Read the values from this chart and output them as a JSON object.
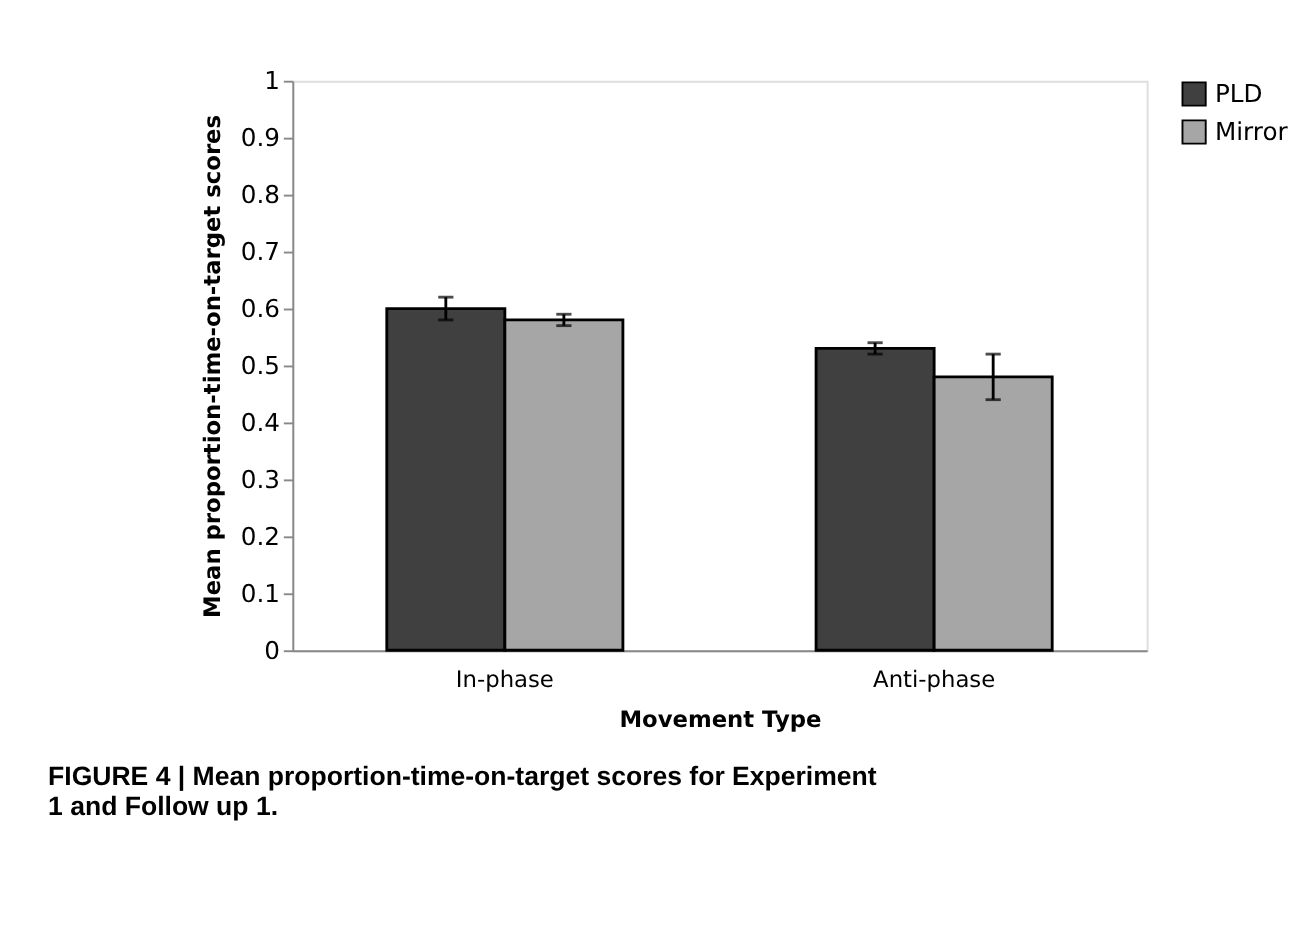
{
  "chart_data": {
    "type": "bar",
    "xlabel": "Movement Type",
    "ylabel": "Mean proportion-time-on-target scores",
    "categories": [
      "In-phase",
      "Anti-phase"
    ],
    "series": [
      {
        "name": "PLD",
        "color": "#404040",
        "values": [
          0.6,
          0.53
        ],
        "errors": [
          0.02,
          0.01
        ]
      },
      {
        "name": "Mirror",
        "color": "#a6a6a6",
        "values": [
          0.58,
          0.48
        ],
        "errors": [
          0.01,
          0.04
        ]
      }
    ],
    "ylim": [
      0,
      1
    ],
    "yticks": [
      0,
      0.1,
      0.2,
      0.3,
      0.4,
      0.5,
      0.6,
      0.7,
      0.8,
      0.9,
      1
    ],
    "grid": false,
    "legend": "right",
    "annotations": [
      "FIGURE 4 | Mean proportion-time-on-target scores for Experiment 1 and Follow up 1."
    ]
  }
}
